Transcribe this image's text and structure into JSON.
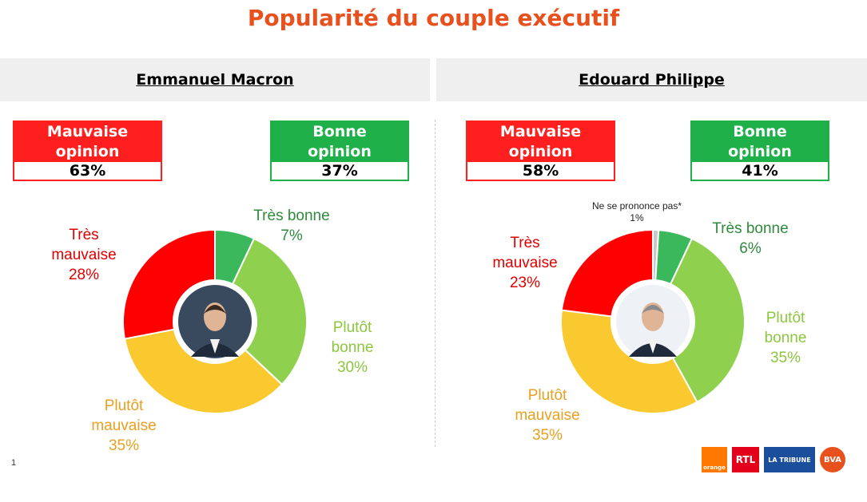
{
  "title": "Popularité du couple exécutif",
  "title_color": "#e8501e",
  "page_number": "1",
  "colors": {
    "tres_mauvaise": "#ff0000",
    "plutot_mauvaise": "#f9c92f",
    "plutot_bonne": "#8fd14f",
    "tres_bonne": "#3cb85c",
    "nspp": "#c8c8c8",
    "mauvaise_box": "#ff1f1f",
    "bonne_box": "#1fb04a",
    "label_tres_mauvaise": "#e00000",
    "label_plutot_mauvaise": "#e8a020",
    "label_plutot_bonne": "#8cc63f",
    "label_tres_bonne": "#2e8b3c"
  },
  "panels": [
    {
      "name": "Emmanuel Macron",
      "mauvaise_label": "Mauvaise\nopinion",
      "mauvaise_value": "63%",
      "bonne_label": "Bonne\nopinion",
      "bonne_value": "37%",
      "avatar_icon": "person-portrait-icon"
    },
    {
      "name": "Edouard Philippe",
      "mauvaise_label": "Mauvaise\nopinion",
      "mauvaise_value": "58%",
      "bonne_label": "Bonne\nopinion",
      "bonne_value": "41%",
      "avatar_icon": "person-portrait-icon"
    }
  ],
  "chart_data": [
    {
      "type": "pie",
      "title": "Emmanuel Macron",
      "categories": [
        "Très bonne",
        "Plutôt bonne",
        "Plutôt mauvaise",
        "Très mauvaise"
      ],
      "values": [
        7,
        30,
        35,
        28
      ],
      "labels": [
        "Très bonne\n7%",
        "Plutôt\nbonne\n30%",
        "Plutôt\nmauvaise\n35%",
        "Très\nmauvaise\n28%"
      ]
    },
    {
      "type": "pie",
      "title": "Edouard Philippe",
      "categories": [
        "Ne se prononce pas*",
        "Très bonne",
        "Plutôt bonne",
        "Plutôt mauvaise",
        "Très mauvaise"
      ],
      "values": [
        1,
        6,
        35,
        35,
        23
      ],
      "labels": [
        "Ne se prononce pas*\n1%",
        "Très bonne\n6%",
        "Plutôt\nbonne\n35%",
        "Plutôt\nmauvaise\n35%",
        "Très\nmauvaise\n23%"
      ]
    }
  ],
  "logos": [
    "orange",
    "RTL",
    "LA TRIBUNE",
    "BVA"
  ]
}
